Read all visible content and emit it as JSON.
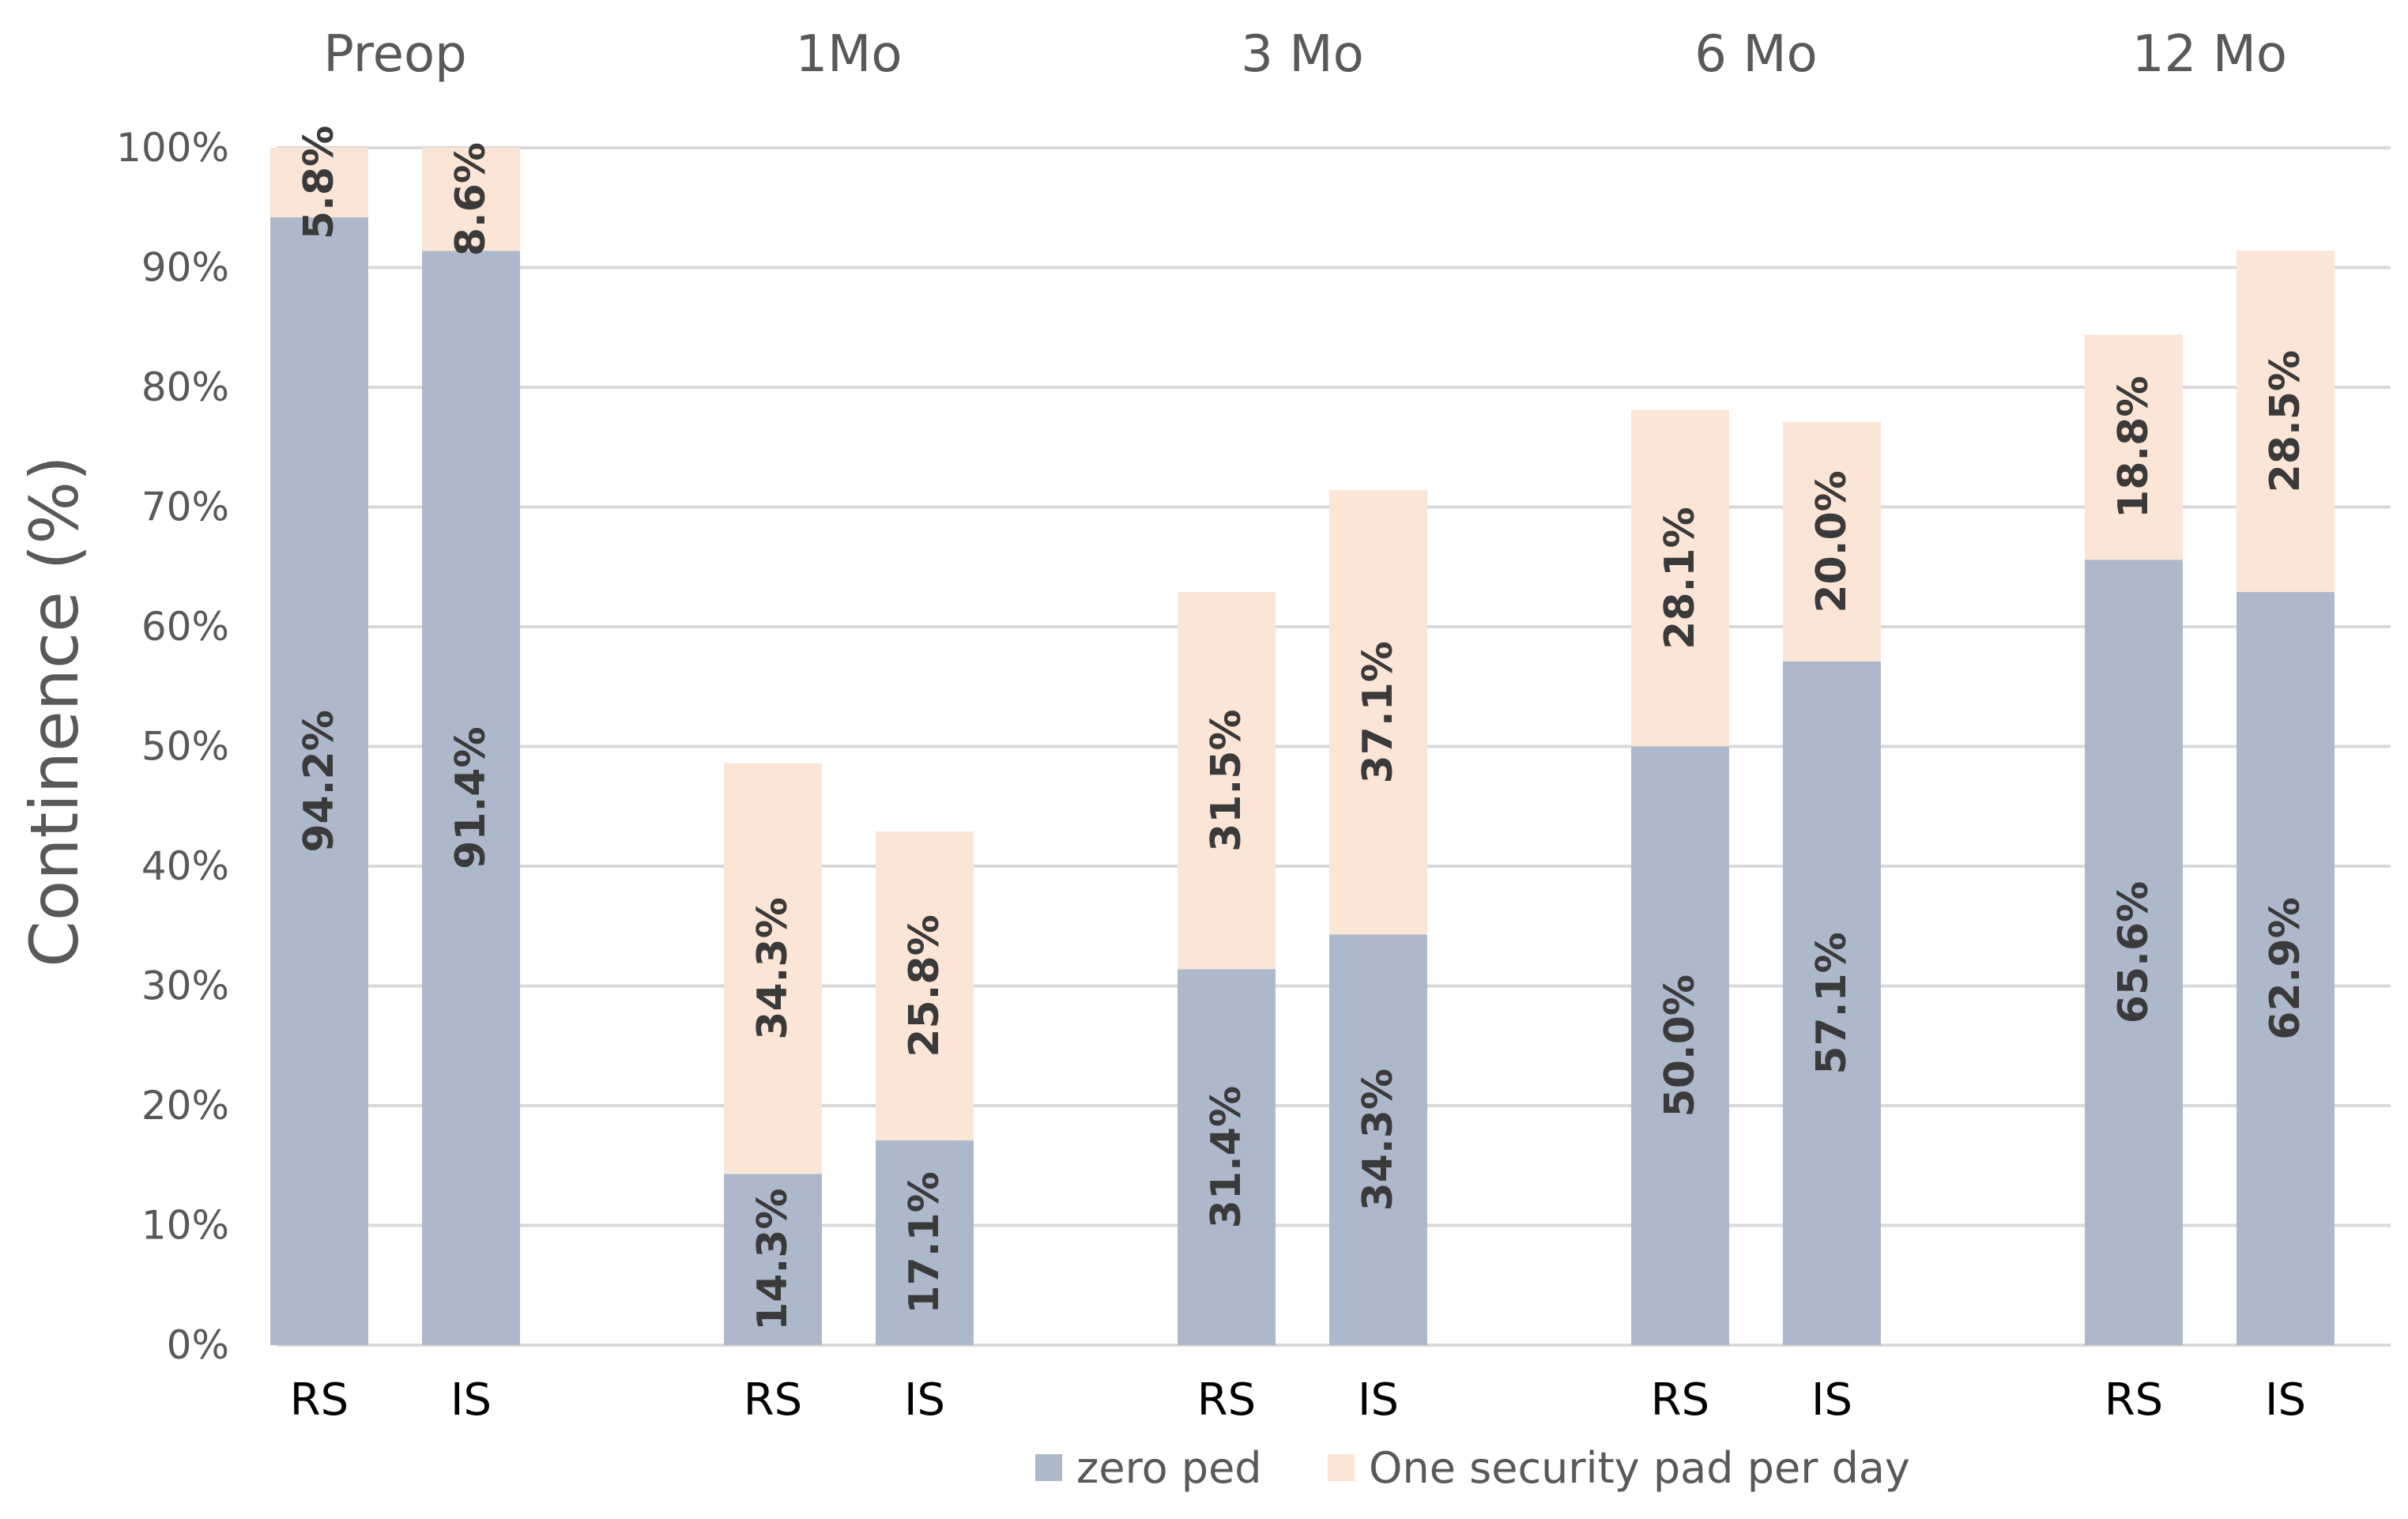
{
  "chart_data": {
    "type": "bar",
    "stacked": true,
    "ylabel": "Continence (%)",
    "ylim": [
      0,
      100
    ],
    "yticks": [
      "0%",
      "10%",
      "20%",
      "30%",
      "40%",
      "50%",
      "60%",
      "70%",
      "80%",
      "90%",
      "100%"
    ],
    "grid": true,
    "legend_position": "bottom",
    "groups": [
      {
        "name": "Preop",
        "bars": [
          {
            "label": "RS",
            "values": [
              94.2,
              5.8
            ],
            "data_labels": [
              "94.2%",
              "5.8%"
            ]
          },
          {
            "label": "IS",
            "values": [
              91.4,
              8.6
            ],
            "data_labels": [
              "91.4%",
              "8.6%"
            ]
          }
        ]
      },
      {
        "name": "1Mo",
        "bars": [
          {
            "label": "RS",
            "values": [
              14.3,
              34.3
            ],
            "data_labels": [
              "14.3%",
              "34.3%"
            ]
          },
          {
            "label": "IS",
            "values": [
              17.1,
              25.8
            ],
            "data_labels": [
              "17.1%",
              "25.8%"
            ]
          }
        ]
      },
      {
        "name": "3 Mo",
        "bars": [
          {
            "label": "RS",
            "values": [
              31.4,
              31.5
            ],
            "data_labels": [
              "31.4%",
              "31.5%"
            ]
          },
          {
            "label": "IS",
            "values": [
              34.3,
              37.1
            ],
            "data_labels": [
              "34.3%",
              "37.1%"
            ]
          }
        ]
      },
      {
        "name": "6 Mo",
        "bars": [
          {
            "label": "RS",
            "values": [
              50.0,
              28.1
            ],
            "data_labels": [
              "50.0%",
              "28.1%"
            ]
          },
          {
            "label": "IS",
            "values": [
              57.1,
              20.0
            ],
            "data_labels": [
              "57.1%",
              "20.0%"
            ]
          }
        ]
      },
      {
        "name": "12 Mo",
        "bars": [
          {
            "label": "RS",
            "values": [
              65.6,
              18.8
            ],
            "data_labels": [
              "65.6%",
              "18.8%"
            ]
          },
          {
            "label": "IS",
            "values": [
              62.9,
              28.5
            ],
            "data_labels": [
              "62.9%",
              "28.5%"
            ]
          }
        ]
      }
    ],
    "series": [
      {
        "name": "zero ped",
        "color": "#adb9ca"
      },
      {
        "name": "One security pad per day",
        "color": "#fbe5d6"
      }
    ]
  }
}
